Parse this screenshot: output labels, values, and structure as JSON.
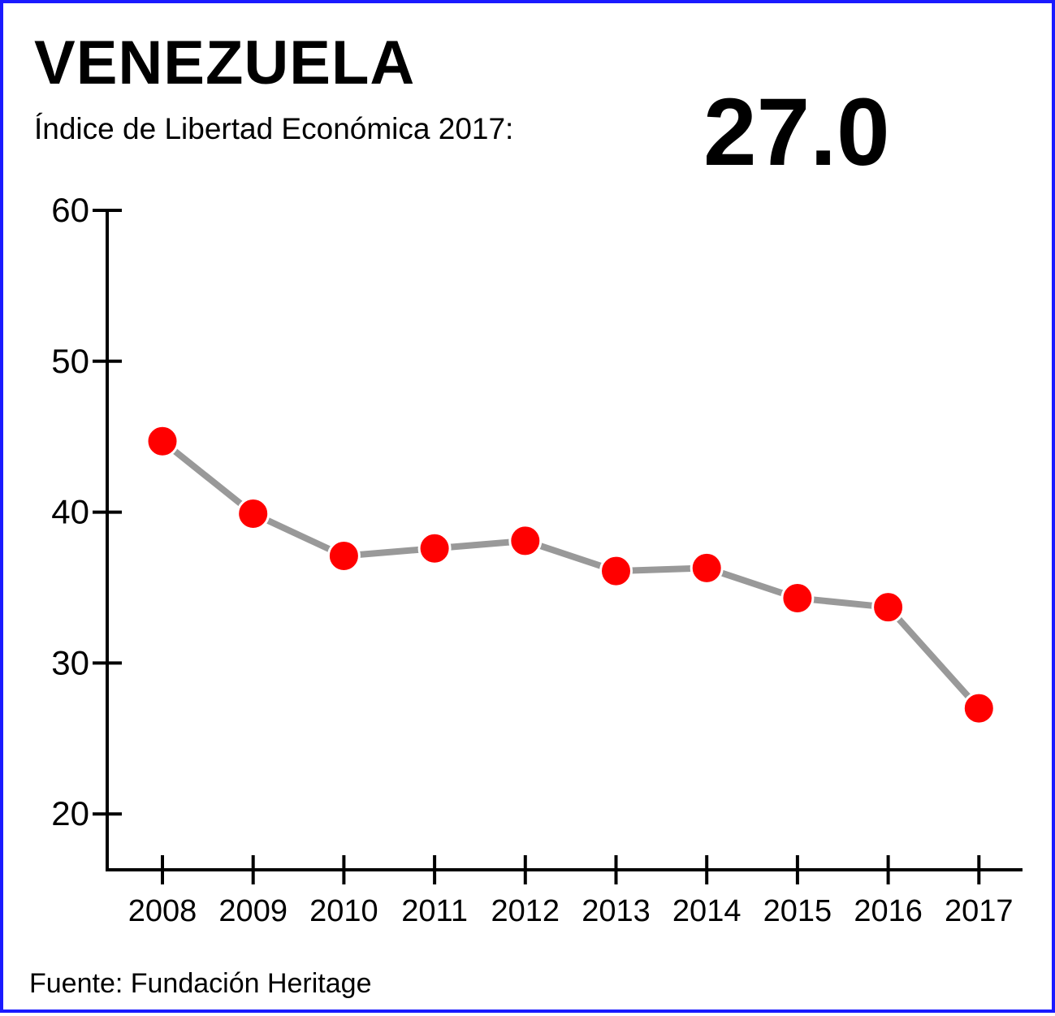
{
  "header": {
    "title": "VENEZUELA",
    "subtitle": "Índice de Libertad Económica 2017:",
    "highlight_value": "27.0"
  },
  "footer": {
    "source": "Fuente: Fundación Heritage"
  },
  "chart_data": {
    "type": "line",
    "title": "",
    "xlabel": "",
    "ylabel": "",
    "categories": [
      "2008",
      "2009",
      "2010",
      "2011",
      "2012",
      "2013",
      "2014",
      "2015",
      "2016",
      "2017"
    ],
    "series": [
      {
        "values": [
          44.7,
          39.9,
          37.1,
          37.6,
          38.1,
          36.1,
          36.3,
          34.3,
          33.7,
          27.0
        ]
      }
    ],
    "ylim": [
      16.3,
      60
    ],
    "yticks": [
      20,
      30,
      40,
      50,
      60
    ],
    "grid": false,
    "colors": {
      "line": "#999999",
      "marker": "#ff0000",
      "axis": "#000000"
    }
  }
}
